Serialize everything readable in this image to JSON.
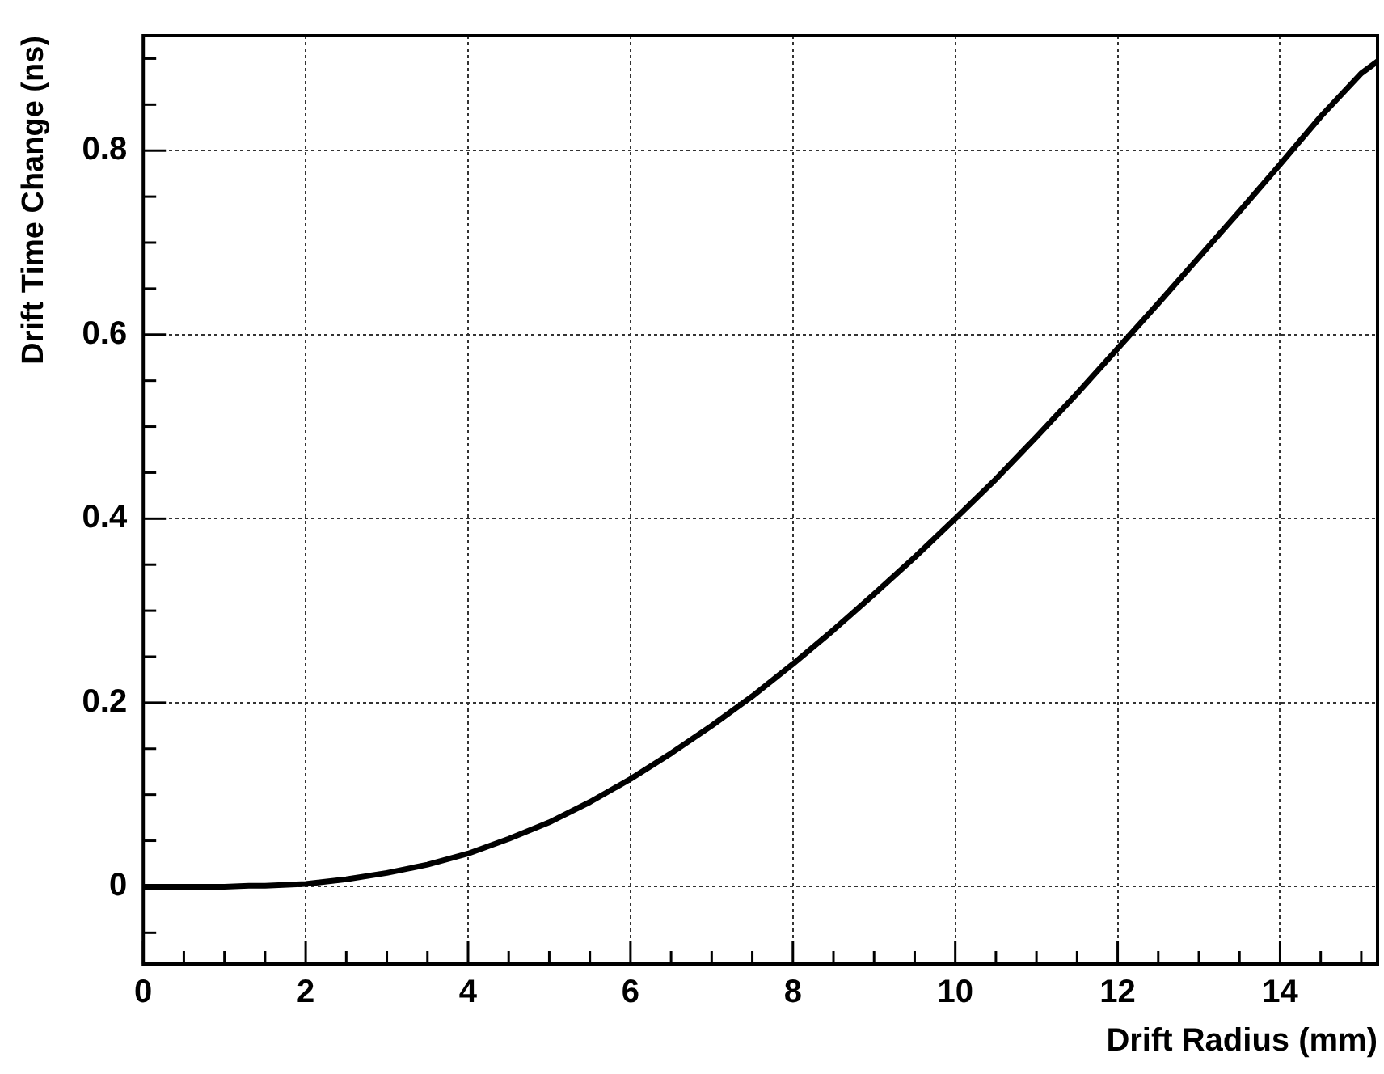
{
  "chart_data": {
    "type": "line",
    "xlabel": "Drift Radius (mm)",
    "ylabel": "Drift Time Change (ns)",
    "series": [
      {
        "color": "#000000",
        "x": [
          0,
          1,
          1.3,
          1.5,
          2,
          2.5,
          3,
          3.5,
          4,
          4.5,
          5,
          5.5,
          6,
          6.5,
          7,
          7.5,
          8,
          8.5,
          9,
          9.5,
          10,
          10.5,
          11,
          11.5,
          12,
          12.5,
          13,
          13.5,
          14,
          14.5,
          15,
          15.2
        ],
        "values": [
          0,
          0,
          0.001,
          0.001,
          0.003,
          0.008,
          0.015,
          0.024,
          0.036,
          0.052,
          0.07,
          0.092,
          0.117,
          0.145,
          0.175,
          0.207,
          0.242,
          0.279,
          0.318,
          0.358,
          0.4,
          0.443,
          0.489,
          0.536,
          0.585,
          0.634,
          0.684,
          0.734,
          0.785,
          0.837,
          0.884,
          0.897
        ]
      }
    ],
    "xlim": [
      0,
      15.2
    ],
    "ylim": [
      -0.084,
      0.925
    ],
    "xticks": [
      0,
      {
        "value": 0.5,
        "label": null
      },
      2,
      {
        "value": 1,
        "label": null
      },
      {
        "value": 1.5,
        "label": null
      },
      {
        "value": 2.5,
        "label": null
      },
      {
        "value": 3,
        "label": null
      },
      {
        "value": 3.5,
        "label": null
      },
      4,
      {
        "value": 4.5,
        "label": null
      },
      {
        "value": 5,
        "label": null
      },
      {
        "value": 5.5,
        "label": null
      },
      6,
      {
        "value": 6.5,
        "label": null
      },
      {
        "value": 7,
        "label": null
      },
      {
        "value": 7.5,
        "label": null
      },
      8,
      {
        "value": 8.5,
        "label": null
      },
      {
        "value": 9,
        "label": null
      },
      {
        "value": 9.5,
        "label": null
      },
      10,
      {
        "value": 10.5,
        "label": null
      },
      {
        "value": 11,
        "label": null
      },
      {
        "value": 11.5,
        "label": null
      },
      12,
      {
        "value": 12.5,
        "label": null
      },
      {
        "value": 13,
        "label": null
      },
      {
        "value": 13.5,
        "label": null
      },
      14,
      {
        "value": 14.5,
        "label": null
      },
      {
        "value": 15,
        "label": null
      }
    ],
    "yticks": [
      {
        "value": -0.05,
        "label": null
      },
      0,
      {
        "value": 0.05,
        "label": null
      },
      {
        "value": 0.1,
        "label": null
      },
      {
        "value": 0.15,
        "label": null
      },
      0.2,
      {
        "value": 0.25,
        "label": null
      },
      {
        "value": 0.3,
        "label": null
      },
      {
        "value": 0.35,
        "label": null
      },
      0.4,
      {
        "value": 0.45,
        "label": null
      },
      {
        "value": 0.5,
        "label": null
      },
      {
        "value": 0.55,
        "label": null
      },
      0.6,
      {
        "value": 0.65,
        "label": null
      },
      {
        "value": 0.7,
        "label": null
      },
      {
        "value": 0.75,
        "label": null
      },
      0.8,
      {
        "value": 0.85,
        "label": null
      },
      {
        "value": 0.9,
        "label": null
      }
    ],
    "grid": true,
    "legend": false,
    "marker": "none",
    "line_style": "solid"
  }
}
